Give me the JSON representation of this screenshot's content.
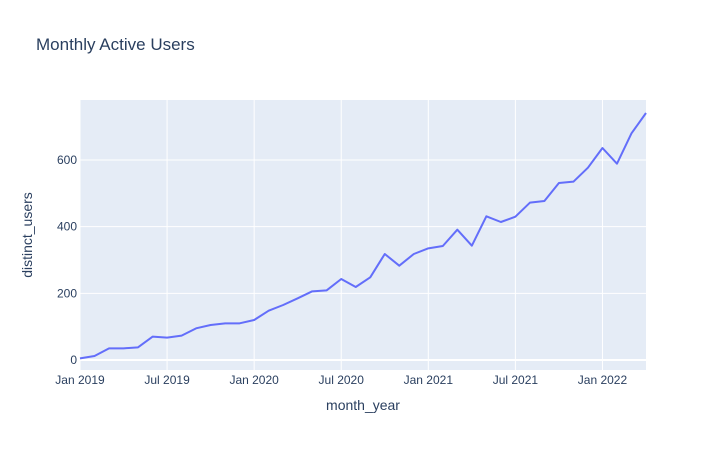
{
  "chart_data": {
    "type": "line",
    "title": "Monthly Active Users",
    "xlabel": "month_year",
    "ylabel": "distinct_users",
    "x": [
      "2019-01",
      "2019-02",
      "2019-03",
      "2019-04",
      "2019-05",
      "2019-06",
      "2019-07",
      "2019-08",
      "2019-09",
      "2019-10",
      "2019-11",
      "2019-12",
      "2020-01",
      "2020-02",
      "2020-03",
      "2020-04",
      "2020-05",
      "2020-06",
      "2020-07",
      "2020-08",
      "2020-09",
      "2020-10",
      "2020-11",
      "2020-12",
      "2021-01",
      "2021-02",
      "2021-03",
      "2021-04",
      "2021-05",
      "2021-06",
      "2021-07",
      "2021-08",
      "2021-09",
      "2021-10",
      "2021-11",
      "2021-12",
      "2022-01",
      "2022-02",
      "2022-03",
      "2022-04"
    ],
    "series": [
      {
        "name": "distinct_users",
        "values": [
          5,
          12,
          35,
          35,
          38,
          70,
          67,
          73,
          95,
          105,
          110,
          110,
          120,
          148,
          165,
          185,
          206,
          209,
          243,
          219,
          248,
          318,
          283,
          318,
          335,
          342,
          391,
          343,
          431,
          414,
          430,
          472,
          477,
          531,
          535,
          577,
          636,
          589,
          680,
          741
        ]
      }
    ],
    "xlim": [
      "2019-01",
      "2022-04"
    ],
    "ylim": [
      -30,
      780
    ],
    "x_tick_labels": [
      "Jan 2019",
      "Jul 2019",
      "Jan 2020",
      "Jul 2020",
      "Jan 2021",
      "Jul 2021",
      "Jan 2022"
    ],
    "x_tick_values": [
      "2019-01",
      "2019-07",
      "2020-01",
      "2020-07",
      "2021-01",
      "2021-07",
      "2022-01"
    ],
    "y_ticks": [
      0,
      200,
      400,
      600
    ],
    "grid": true,
    "line_color": "#636efa",
    "plot_bg_color": "#e5ecf6",
    "grid_color": "#ffffff"
  }
}
